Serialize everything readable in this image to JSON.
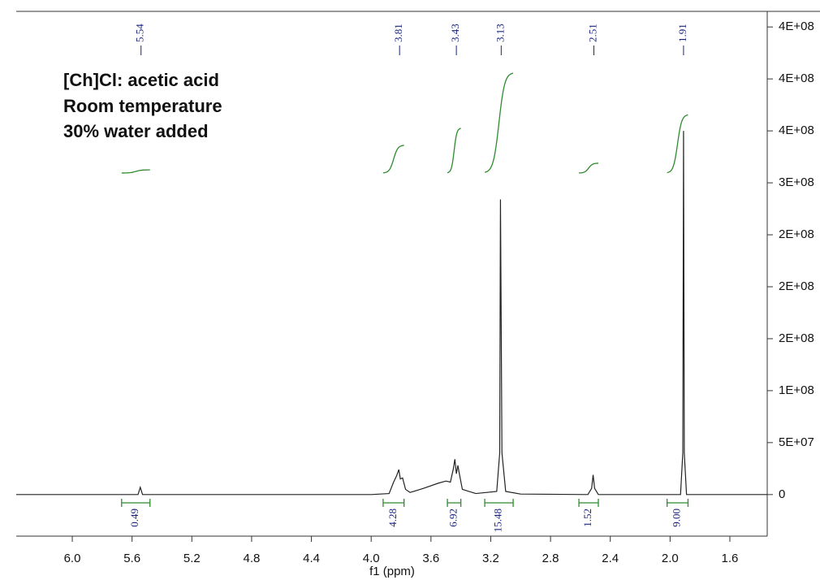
{
  "chart_data": {
    "type": "nmr",
    "annotations": [
      "[Ch]Cl: acetic acid",
      "Room temperature",
      "30% water added"
    ],
    "xlabel": "f1 (ppm)",
    "xlim": [
      6.375,
      1.35
    ],
    "xticks": [
      {
        "value": 6.0,
        "label": "6.0"
      },
      5.6,
      5.2,
      4.8,
      4.4,
      {
        "value": 4.0,
        "label": "4.0"
      },
      3.6,
      3.2,
      2.8,
      2.4,
      {
        "value": 2.0,
        "label": "2.0"
      },
      1.6
    ],
    "ylim": [
      -40000000,
      465000000
    ],
    "yticks": [
      0,
      {
        "value": 50000000,
        "label": "5E+07"
      },
      {
        "value": 100000000,
        "label": "1E+08"
      },
      {
        "value": 150000000,
        "label": "2E+08"
      },
      {
        "value": 200000000,
        "label": "2E+08"
      },
      {
        "value": 250000000,
        "label": "2E+08"
      },
      {
        "value": 300000000,
        "label": "3E+08"
      },
      {
        "value": 350000000,
        "label": "4E+08"
      },
      {
        "value": 400000000,
        "label": "4E+08"
      },
      {
        "value": 450000000,
        "label": "4E+08"
      }
    ],
    "color": "#222222",
    "x": [
      6.375,
      5.56,
      5.545,
      5.53,
      4.0,
      3.88,
      3.85,
      3.83,
      3.815,
      3.805,
      3.79,
      3.77,
      3.74,
      3.65,
      3.55,
      3.5,
      3.47,
      3.45,
      3.44,
      3.43,
      3.42,
      3.41,
      3.39,
      3.3,
      3.16,
      3.14,
      3.135,
      3.125,
      3.1,
      3.0,
      2.55,
      2.525,
      2.515,
      2.505,
      2.48,
      1.93,
      1.915,
      1.91,
      1.905,
      1.89,
      1.35
    ],
    "values": [
      0,
      0,
      7000000,
      0,
      0,
      1000000,
      12000000,
      18000000,
      24000000,
      15000000,
      16000000,
      5000000,
      2000000,
      6000000,
      11000000,
      13000000,
      12000000,
      25000000,
      34000000,
      20000000,
      28000000,
      20000000,
      5000000,
      1000000,
      3000000,
      40000000,
      284000000,
      40000000,
      3000000,
      500000,
      0,
      6000000,
      19000000,
      6000000,
      0,
      0,
      40000000,
      350000000,
      40000000,
      0,
      0
    ],
    "peaks": [
      5.54,
      3.81,
      3.43,
      3.13,
      2.51,
      1.91
    ],
    "integrals": {
      "color": "#2e8b2e",
      "values": [
        0.49,
        4.28,
        6.92,
        15.48,
        1.52,
        9
      ],
      "value_labels": [
        "0.49",
        "4.28",
        "6.92",
        "15.48",
        "1.52",
        "9.00"
      ],
      "ranges": [
        [
          5.67,
          5.48
        ],
        [
          3.92,
          3.78
        ],
        [
          3.49,
          3.4
        ],
        [
          3.24,
          3.05
        ],
        [
          2.61,
          2.48
        ],
        [
          2.02,
          1.88
        ]
      ]
    }
  }
}
